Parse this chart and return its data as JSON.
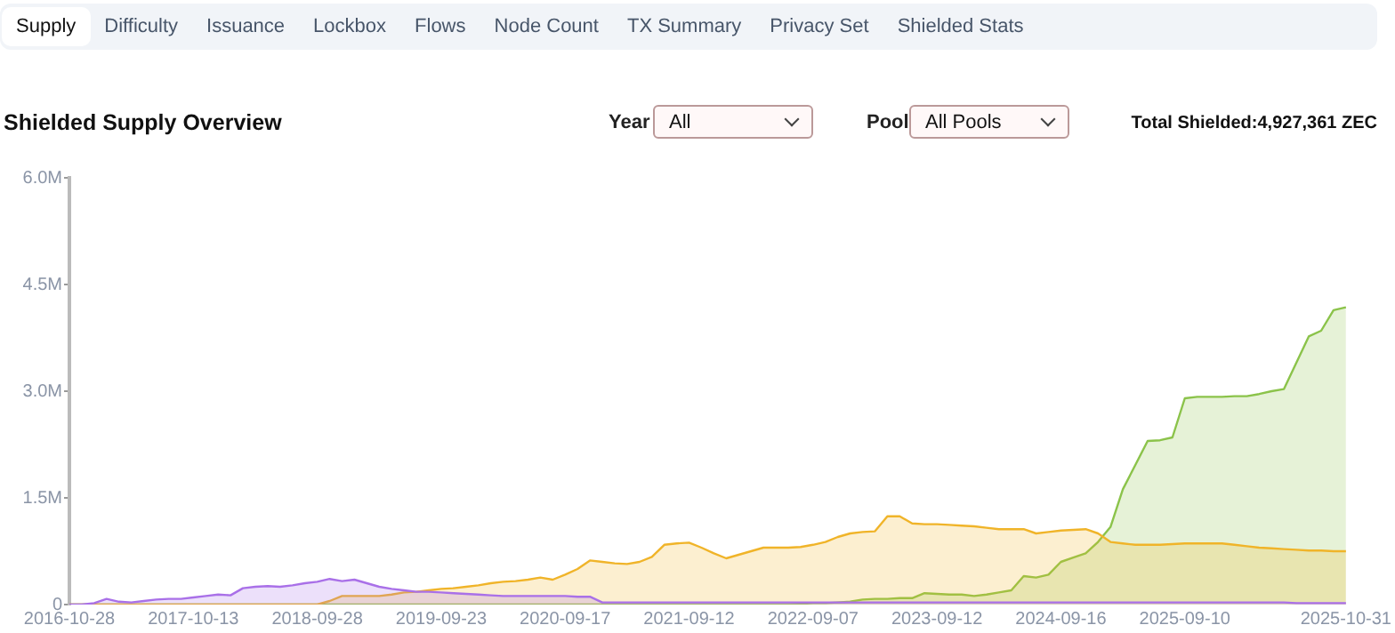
{
  "chart_data": {
    "type": "area",
    "title": "Shielded Supply Overview",
    "annotations": [
      "Supply",
      "Difficulty",
      "Issuance",
      "Lockbox",
      "Flows",
      "Node Count",
      "TX Summary",
      "Privacy Set",
      "Shielded Stats",
      "Year",
      "All",
      "Pool",
      "All Pools",
      "Total Shielded:4,927,361 ZEC"
    ],
    "categories": [
      "2016-10-28",
      null,
      null,
      null,
      null,
      null,
      null,
      null,
      null,
      null,
      "2017-10-13",
      null,
      null,
      null,
      null,
      null,
      null,
      null,
      null,
      null,
      "2018-09-28",
      null,
      null,
      null,
      null,
      null,
      null,
      null,
      null,
      null,
      "2019-09-23",
      null,
      null,
      null,
      null,
      null,
      null,
      null,
      null,
      null,
      "2020-09-17",
      null,
      null,
      null,
      null,
      null,
      null,
      null,
      null,
      null,
      "2021-09-12",
      null,
      null,
      null,
      null,
      null,
      null,
      null,
      null,
      null,
      "2022-09-07",
      null,
      null,
      null,
      null,
      null,
      null,
      null,
      null,
      null,
      "2023-09-12",
      null,
      null,
      null,
      null,
      null,
      null,
      null,
      null,
      null,
      "2024-09-16",
      null,
      null,
      null,
      null,
      null,
      null,
      null,
      null,
      null,
      "2025-09-10",
      null,
      null,
      null,
      null,
      null,
      null,
      null,
      null,
      null,
      null,
      null,
      null,
      "2025-10-31"
    ],
    "series": [
      {
        "color": "#a970e8",
        "values": [
          0,
          0,
          0.02,
          0.08,
          0.04,
          0.03,
          0.05,
          0.07,
          0.08,
          0.08,
          0.1,
          0.12,
          0.14,
          0.13,
          0.23,
          0.25,
          0.26,
          0.25,
          0.27,
          0.3,
          0.32,
          0.36,
          0.33,
          0.35,
          0.3,
          0.25,
          0.22,
          0.2,
          0.18,
          0.18,
          0.17,
          0.16,
          0.15,
          0.14,
          0.13,
          0.12,
          0.12,
          0.12,
          0.12,
          0.12,
          0.12,
          0.11,
          0.11,
          0.03,
          0.03,
          0.03,
          0.03,
          0.03,
          0.03,
          0.03,
          0.03,
          0.03,
          0.03,
          0.03,
          0.03,
          0.03,
          0.03,
          0.03,
          0.03,
          0.03,
          0.03,
          0.03,
          0.03,
          0.03,
          0.03,
          0.03,
          0.03,
          0.03,
          0.03,
          0.03,
          0.03,
          0.03,
          0.03,
          0.03,
          0.03,
          0.03,
          0.03,
          0.03,
          0.03,
          0.03,
          0.03,
          0.03,
          0.03,
          0.03,
          0.03,
          0.03,
          0.03,
          0.03,
          0.03,
          0.03,
          0.03,
          0.03,
          0.03,
          0.03,
          0.03,
          0.03,
          0.03,
          0.03,
          0.03,
          0.02,
          0.02,
          0.02,
          0.02,
          0.02
        ]
      },
      {
        "color": "#f0b429",
        "values": [
          0,
          0,
          0,
          0,
          0,
          0,
          0,
          0,
          0,
          0,
          0,
          0,
          0,
          0,
          0,
          0,
          0,
          0,
          0,
          0,
          0,
          0.05,
          0.12,
          0.12,
          0.12,
          0.12,
          0.14,
          0.17,
          0.18,
          0.2,
          0.22,
          0.23,
          0.25,
          0.27,
          0.3,
          0.32,
          0.33,
          0.35,
          0.38,
          0.35,
          0.42,
          0.5,
          0.62,
          0.6,
          0.58,
          0.57,
          0.6,
          0.67,
          0.84,
          0.86,
          0.87,
          0.8,
          0.72,
          0.65,
          0.7,
          0.75,
          0.8,
          0.8,
          0.8,
          0.81,
          0.84,
          0.88,
          0.95,
          1.0,
          1.02,
          1.03,
          1.24,
          1.24,
          1.14,
          1.13,
          1.13,
          1.12,
          1.11,
          1.1,
          1.08,
          1.06,
          1.06,
          1.06,
          1.0,
          1.02,
          1.04,
          1.05,
          1.06,
          1.0,
          0.88,
          0.86,
          0.84,
          0.84,
          0.84,
          0.85,
          0.86,
          0.86,
          0.86,
          0.86,
          0.84,
          0.82,
          0.8,
          0.79,
          0.78,
          0.77,
          0.76,
          0.76,
          0.75,
          0.75
        ]
      },
      {
        "color": "#8bc34a",
        "values": [
          0,
          0,
          0,
          0,
          0,
          0,
          0,
          0,
          0,
          0,
          0,
          0,
          0,
          0,
          0,
          0,
          0,
          0,
          0,
          0,
          0,
          0,
          0,
          0,
          0,
          0,
          0,
          0,
          0,
          0,
          0,
          0,
          0,
          0,
          0,
          0,
          0,
          0,
          0,
          0,
          0,
          0,
          0,
          0,
          0,
          0,
          0,
          0,
          0,
          0,
          0,
          0,
          0,
          0,
          0,
          0,
          0,
          0,
          0,
          0.01,
          0.02,
          0.02,
          0.03,
          0.04,
          0.07,
          0.08,
          0.08,
          0.09,
          0.09,
          0.16,
          0.15,
          0.14,
          0.14,
          0.12,
          0.14,
          0.17,
          0.2,
          0.4,
          0.38,
          0.42,
          0.6,
          0.66,
          0.72,
          0.88,
          1.09,
          1.62,
          1.96,
          2.3,
          2.31,
          2.35,
          2.9,
          2.92,
          2.92,
          2.92,
          2.93,
          2.93,
          2.96,
          3.0,
          3.03,
          3.4,
          3.77,
          3.85,
          4.14,
          4.18
        ]
      }
    ],
    "ylim": [
      0,
      6
    ],
    "yticks": [
      {
        "value": 0,
        "label": "0"
      },
      {
        "value": 1.5,
        "label": "1.5M"
      },
      {
        "value": 3,
        "label": "3.0M"
      },
      {
        "value": 4.5,
        "label": "4.5M"
      },
      {
        "value": 6,
        "label": "6.0M"
      }
    ],
    "legend": false,
    "marker": "none"
  }
}
